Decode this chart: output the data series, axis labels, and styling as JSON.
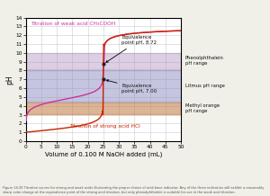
{
  "title_weak": "Titration of weak acid CH₃COOH",
  "title_strong": "Titration of strong acid HCl",
  "xlabel": "Volume of 0.100 M NaOH added (mL)",
  "ylabel": "pH",
  "xlim": [
    0,
    50
  ],
  "ylim": [
    0,
    14
  ],
  "xticks": [
    0,
    5,
    10,
    15,
    20,
    25,
    30,
    35,
    40,
    45,
    50
  ],
  "yticks": [
    0,
    1,
    2,
    3,
    4,
    5,
    6,
    7,
    8,
    9,
    10,
    11,
    12,
    13,
    14
  ],
  "weak_acid_color": "#cc3399",
  "strong_acid_color": "#cc2200",
  "indicator_methyl_color": "#c07840",
  "indicator_litmus_color": "#8080bb",
  "indicator_phenolph_color": "#aa88bb",
  "indicator_methyl_ph": [
    3.1,
    4.4
  ],
  "indicator_litmus_ph": [
    4.5,
    8.0
  ],
  "indicator_phenolph_ph": [
    8.2,
    10.0
  ],
  "eq_weak_ph": 8.72,
  "eq_weak_vol": 25.0,
  "eq_strong_ph": 7.0,
  "eq_strong_vol": 25.0,
  "fig_bg": "#f0f0e8",
  "plot_bg": "#ffffff",
  "label_methyl": "Methyl orange\npH range",
  "label_litmus": "Litmus pH range",
  "label_phenolph": "Phenolphthalein\npH range",
  "label_eq_weak": "Equivalence\npoint pH, 8.72",
  "label_eq_strong": "Equivalence\npoint pH, 7.00",
  "caption": "Figure 14.20 Titration curves for strong and weak acids illustrating the proper choice of acid-base indicator. Any of the three indicators will exhibit a reasonably sharp color change at the equivalence point of the strong acid titration, but only phenolphthalein is suitable for use in the weak acid titration."
}
